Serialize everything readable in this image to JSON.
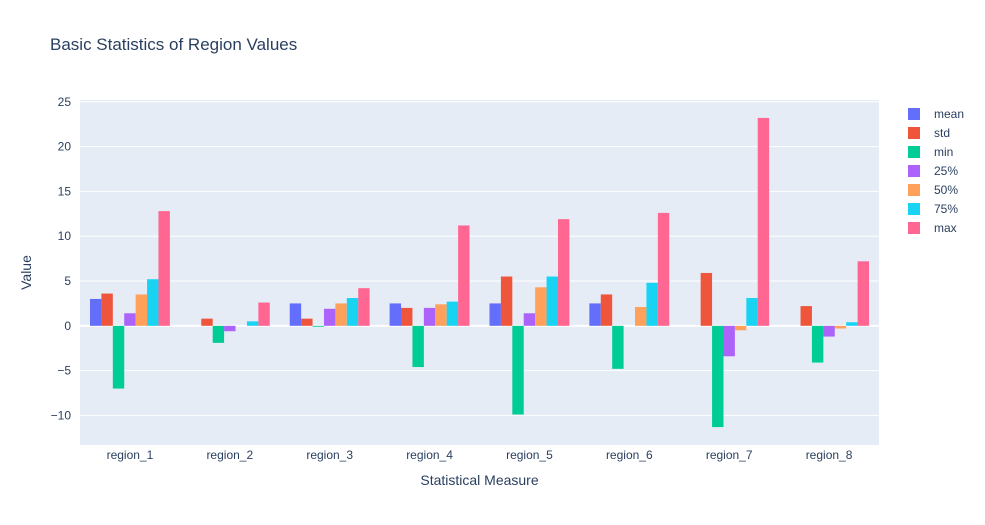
{
  "chart_data": {
    "type": "bar",
    "title": "Basic Statistics of Region Values",
    "xlabel": "Statistical Measure",
    "ylabel": "Value",
    "ylim": [
      -13.3,
      25.2
    ],
    "yticks": [
      25,
      20,
      15,
      10,
      5,
      0,
      -5,
      -10
    ],
    "grid": true,
    "legend_position": "right",
    "categories": [
      "region_1",
      "region_2",
      "region_3",
      "region_4",
      "region_5",
      "region_6",
      "region_7",
      "region_8"
    ],
    "series": [
      {
        "name": "mean",
        "color": "#636efa",
        "values": [
          3.0,
          0.0,
          2.5,
          2.5,
          2.5,
          2.5,
          0.0,
          0.0
        ]
      },
      {
        "name": "std",
        "color": "#ef553b",
        "values": [
          3.6,
          0.8,
          0.8,
          2.0,
          5.5,
          3.5,
          5.9,
          2.2
        ]
      },
      {
        "name": "min",
        "color": "#00cc96",
        "values": [
          -7.0,
          -1.9,
          -0.1,
          -4.6,
          -9.9,
          -4.8,
          -11.3,
          -4.1
        ]
      },
      {
        "name": "25%",
        "color": "#ab63fa",
        "values": [
          1.4,
          -0.6,
          1.9,
          2.0,
          1.4,
          0.0,
          -3.4,
          -1.2
        ]
      },
      {
        "name": "50%",
        "color": "#ffa15a",
        "values": [
          3.5,
          0.0,
          2.5,
          2.4,
          4.3,
          2.1,
          -0.5,
          -0.3
        ]
      },
      {
        "name": "75%",
        "color": "#19d3f3",
        "values": [
          5.2,
          0.5,
          3.1,
          2.7,
          5.5,
          4.8,
          3.1,
          0.4
        ]
      },
      {
        "name": "max",
        "color": "#ff6692",
        "values": [
          12.8,
          2.6,
          4.2,
          11.2,
          11.9,
          12.6,
          23.2,
          7.2
        ]
      }
    ]
  }
}
